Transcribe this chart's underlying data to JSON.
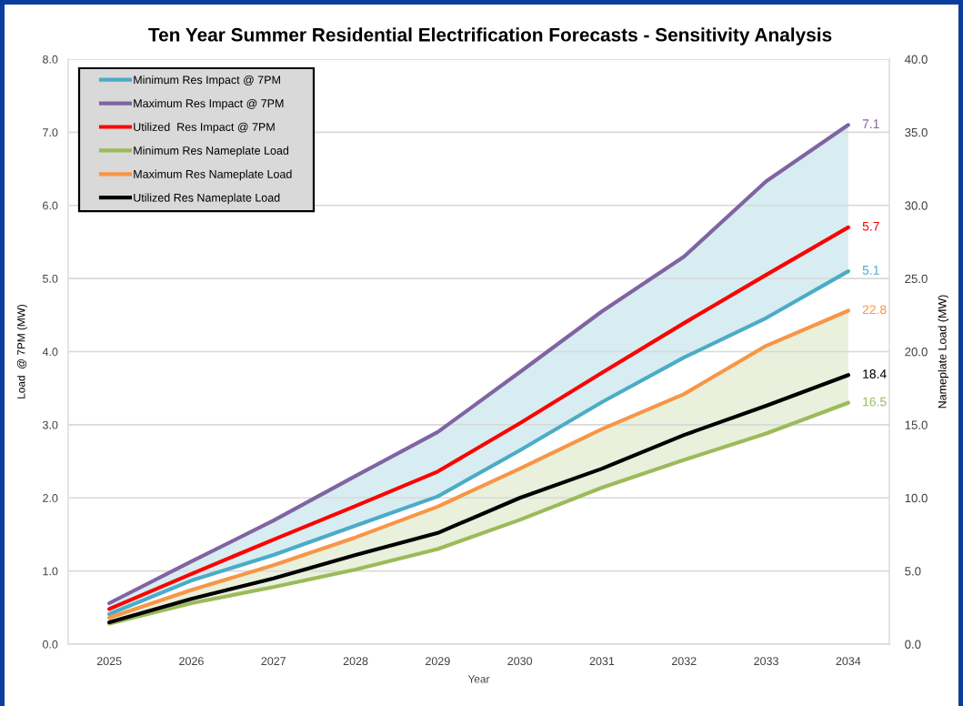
{
  "chart_data": {
    "type": "line",
    "title": "Ten Year Summer Residential Electrification Forecasts - Sensitivity Analysis",
    "xlabel": "Year",
    "ylabel": "Load  @ 7PM (MW)",
    "y2label": "Nameplate Load (MW)",
    "categories": [
      "2025",
      "2026",
      "2027",
      "2028",
      "2029",
      "2030",
      "2031",
      "2032",
      "2033",
      "2034"
    ],
    "series": [
      {
        "name": "Minimum Res Impact @ 7PM",
        "color": "#4bacc6",
        "values": [
          0.41,
          0.87,
          1.22,
          1.62,
          2.02,
          2.65,
          3.31,
          3.92,
          4.46,
          5.1
        ],
        "lower": [
          0.41,
          0.87,
          1.22,
          1.62,
          2.02,
          2.65,
          3.31,
          3.92,
          4.46,
          5.1
        ],
        "upper": [
          0.56,
          1.13,
          1.69,
          2.3,
          2.9,
          3.72,
          4.55,
          5.3,
          6.33,
          7.1
        ],
        "value_labels": [
          null,
          null,
          null,
          null,
          null,
          null,
          null,
          null,
          null,
          "5.1"
        ]
      },
      {
        "name": "Maximum Res Impact @ 7PM",
        "color": "#8064a2",
        "values": [
          0.56,
          1.13,
          1.69,
          2.3,
          2.9,
          3.72,
          4.55,
          5.3,
          6.33,
          7.1
        ],
        "value_labels": [
          null,
          null,
          null,
          null,
          null,
          null,
          null,
          null,
          null,
          "7.1"
        ]
      },
      {
        "name": "Utilized  Res Impact @ 7PM",
        "color": "#ff0000",
        "values": [
          0.48,
          0.96,
          1.43,
          1.89,
          2.36,
          3.02,
          3.71,
          4.39,
          5.05,
          5.7
        ],
        "value_labels": [
          null,
          null,
          null,
          null,
          null,
          null,
          null,
          null,
          null,
          "5.7"
        ]
      },
      {
        "name": "Minimum Res Nameplate Load",
        "axis": "y2",
        "color": "#9bbb59",
        "values": [
          1.4,
          2.8,
          3.9,
          5.1,
          6.5,
          8.5,
          10.7,
          12.6,
          14.4,
          16.5
        ],
        "lower": [
          1.4,
          2.8,
          3.9,
          5.1,
          6.5,
          8.5,
          10.7,
          12.6,
          14.4,
          16.5
        ],
        "upper": [
          1.8,
          3.7,
          5.4,
          7.3,
          9.4,
          12.0,
          14.7,
          17.1,
          20.4,
          22.8
        ],
        "value_labels": [
          null,
          null,
          null,
          null,
          null,
          null,
          null,
          null,
          null,
          "16.5"
        ]
      },
      {
        "name": "Maximum Res Nameplate Load",
        "axis": "y2",
        "color": "#f79646",
        "values": [
          1.8,
          3.7,
          5.4,
          7.3,
          9.4,
          12.0,
          14.7,
          17.1,
          20.4,
          22.8
        ],
        "value_labels": [
          null,
          null,
          null,
          null,
          null,
          null,
          null,
          null,
          null,
          "22.8"
        ]
      },
      {
        "name": "Utilized Res Nameplate Load",
        "axis": "y2",
        "color": "#000000",
        "values": [
          1.5,
          3.1,
          4.5,
          6.1,
          7.6,
          10.0,
          12.0,
          14.3,
          16.3,
          18.4
        ],
        "value_labels": [
          null,
          null,
          null,
          null,
          null,
          null,
          null,
          null,
          null,
          "18.4"
        ]
      }
    ],
    "ylim": [
      0,
      8
    ],
    "yticks": [
      {
        "value": 0,
        "label": "0.0"
      },
      {
        "value": 1,
        "label": "1.0"
      },
      {
        "value": 2,
        "label": "2.0"
      },
      {
        "value": 3,
        "label": "3.0"
      },
      {
        "value": 4,
        "label": "4.0"
      },
      {
        "value": 5,
        "label": "5.0"
      },
      {
        "value": 6,
        "label": "6.0"
      },
      {
        "value": 7,
        "label": "7.0"
      },
      {
        "value": 8,
        "label": "8.0"
      }
    ],
    "y2lim": [
      0,
      40
    ],
    "y2ticks": [
      {
        "value": 0,
        "label": "0.0"
      },
      {
        "value": 5,
        "label": "5.0"
      },
      {
        "value": 10,
        "label": "10.0"
      },
      {
        "value": 15,
        "label": "15.0"
      },
      {
        "value": 20,
        "label": "20.0"
      },
      {
        "value": 25,
        "label": "25.0"
      },
      {
        "value": 30,
        "label": "30.0"
      },
      {
        "value": 35,
        "label": "35.0"
      },
      {
        "value": 40,
        "label": "40.0"
      }
    ],
    "grid": "y",
    "legend": "top left"
  }
}
